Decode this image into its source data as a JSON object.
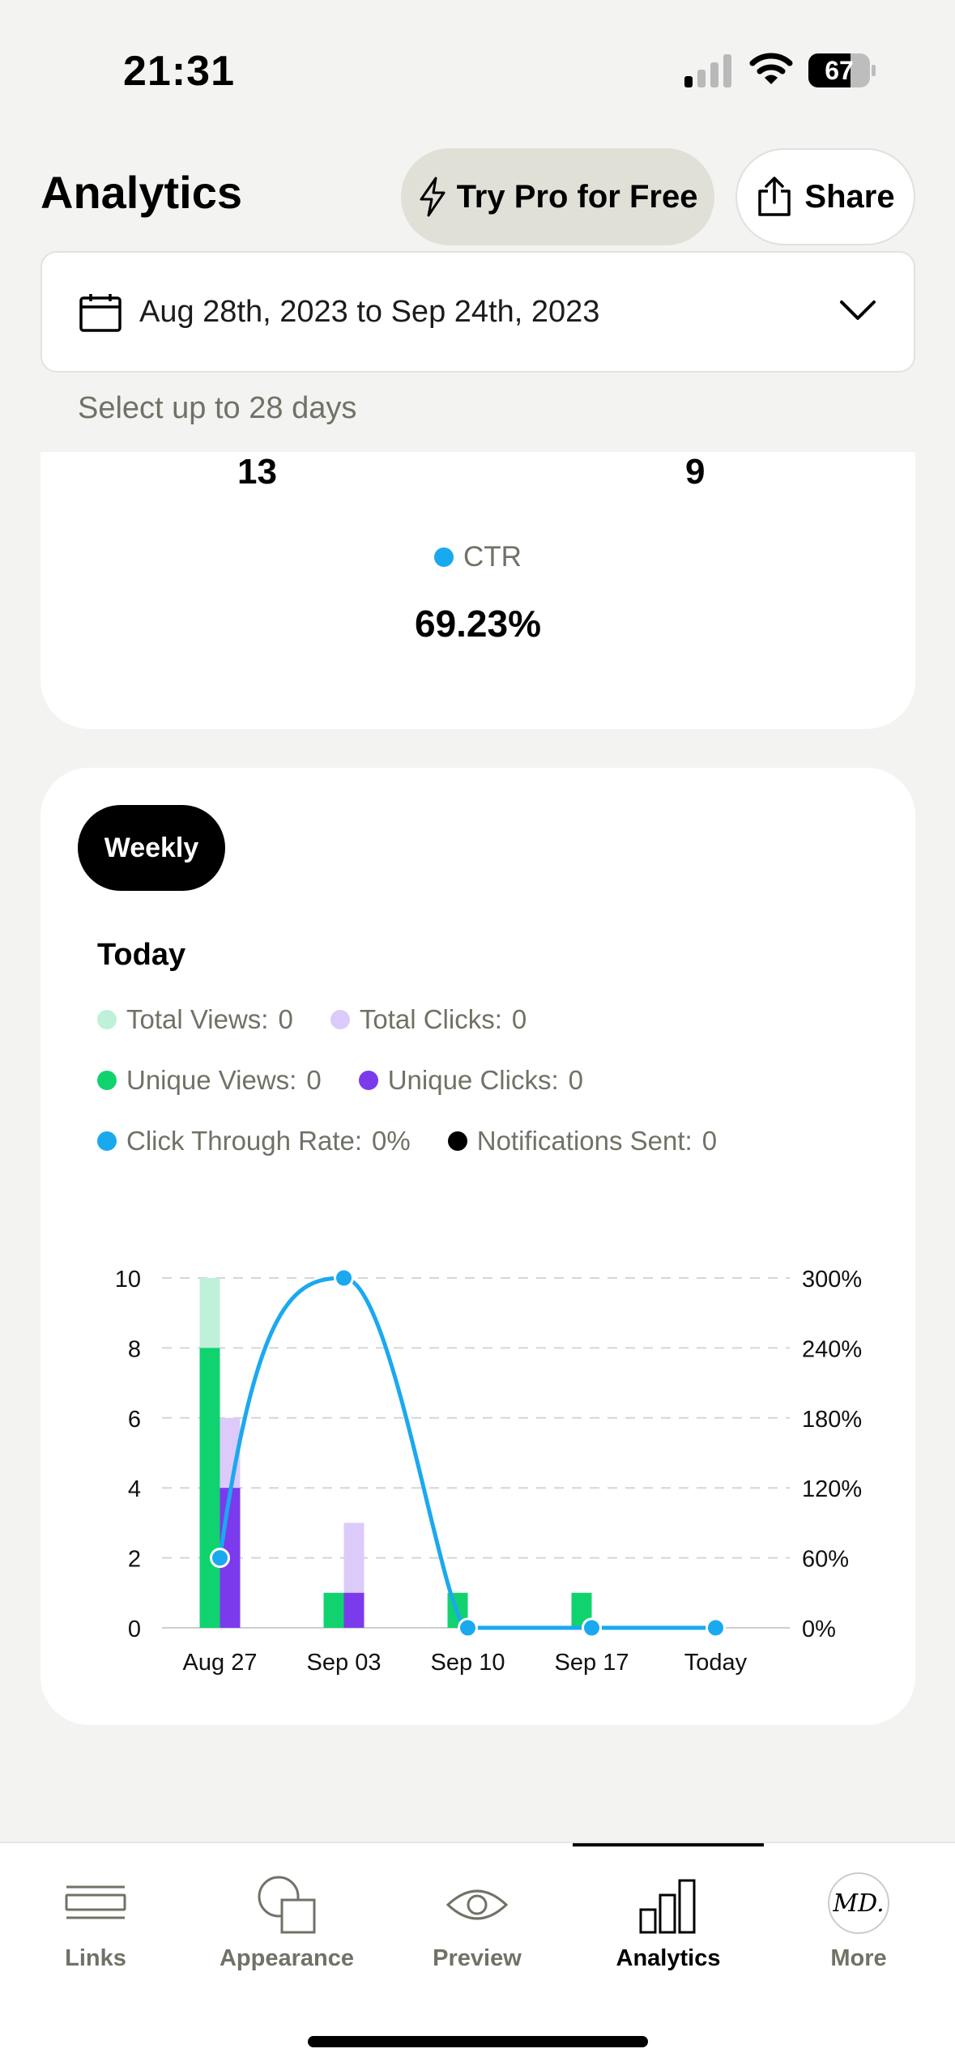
{
  "status_bar": {
    "time": "21:31",
    "battery": "67"
  },
  "header": {
    "title": "Analytics",
    "pro_label": "Try Pro for Free",
    "share_label": "Share"
  },
  "date_range": {
    "value": "Aug 28th, 2023 to Sep 24th, 2023",
    "hint": "Select up to 28 days"
  },
  "summary": {
    "left_number": "13",
    "right_number": "9",
    "ctr_label": "CTR",
    "ctr_value": "69.23%"
  },
  "chart_card": {
    "period_button": "Weekly",
    "selection_label": "Today",
    "legend": [
      {
        "label": "Total Views:",
        "value": "0",
        "color": "#bff0d9"
      },
      {
        "label": "Total Clicks:",
        "value": "0",
        "color": "#dccbfa"
      },
      {
        "label": "Unique Views:",
        "value": "0",
        "color": "#10d36f"
      },
      {
        "label": "Unique Clicks:",
        "value": "0",
        "color": "#7c3aed"
      },
      {
        "label": "Click Through Rate:",
        "value": "0%",
        "color": "#1aa9ef"
      },
      {
        "label": "Notifications Sent:",
        "value": "0",
        "color": "#000000"
      }
    ]
  },
  "chart_data": {
    "type": "bar",
    "categories": [
      "Aug 27",
      "Sep 03",
      "Sep 10",
      "Sep 17",
      "Today"
    ],
    "series": [
      {
        "name": "Total Views",
        "values": [
          10,
          1,
          1,
          1,
          0
        ],
        "color": "#bff0d9"
      },
      {
        "name": "Unique Views",
        "values": [
          8,
          1,
          1,
          1,
          0
        ],
        "color": "#10d36f"
      },
      {
        "name": "Total Clicks",
        "values": [
          6,
          3,
          0,
          0,
          0
        ],
        "color": "#dccbfa"
      },
      {
        "name": "Unique Clicks",
        "values": [
          4,
          1,
          0,
          0,
          0
        ],
        "color": "#7c3aed"
      },
      {
        "name": "Click Through Rate",
        "type": "line",
        "axis": "right",
        "values": [
          60,
          300,
          0,
          0,
          0
        ],
        "color": "#1aa9ef"
      }
    ],
    "ylim": [
      0,
      10
    ],
    "yticks": [
      "0",
      "2",
      "4",
      "6",
      "8",
      "10"
    ],
    "y2lim": [
      0,
      300
    ],
    "y2ticks": [
      "0%",
      "60%",
      "120%",
      "180%",
      "240%",
      "300%"
    ],
    "grid": "dashed horizontal"
  },
  "bottom_nav": {
    "items": [
      {
        "label": "Links",
        "icon": "links-icon"
      },
      {
        "label": "Appearance",
        "icon": "appearance-icon"
      },
      {
        "label": "Preview",
        "icon": "eye-icon"
      },
      {
        "label": "Analytics",
        "icon": "analytics-icon"
      },
      {
        "label": "More",
        "icon": "avatar"
      }
    ],
    "avatar_initials": "MD."
  }
}
